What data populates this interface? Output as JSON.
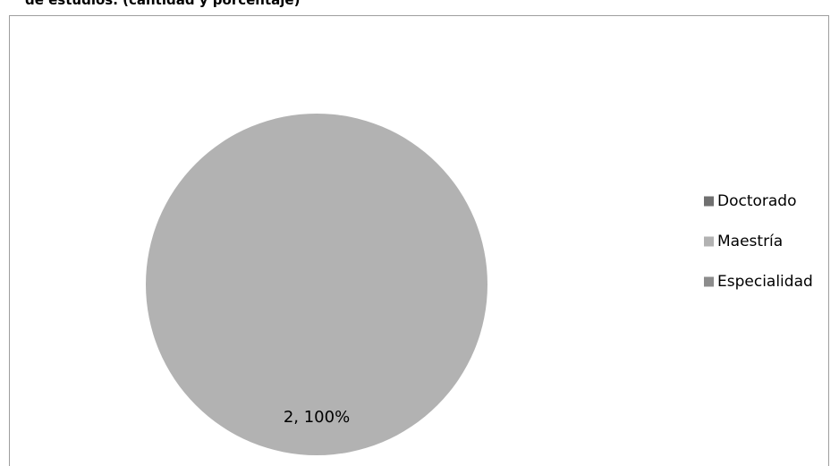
{
  "caption": "de estudios. (cantidad y porcentaje)",
  "chart_data": {
    "type": "pie",
    "categories": [
      "Doctorado",
      "Maestría",
      "Especialidad"
    ],
    "values": [
      0,
      2,
      0
    ],
    "colors": [
      "#707070",
      "#b2b2b2",
      "#8c8c8c"
    ],
    "data_labels": [
      "",
      "2, 100%",
      ""
    ],
    "legend": {
      "position": "right",
      "entries": [
        "Doctorado",
        "Maestría",
        "Especialidad"
      ]
    }
  }
}
